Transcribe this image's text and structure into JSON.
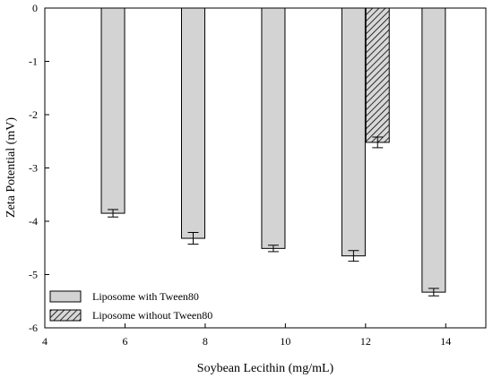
{
  "chart_data": {
    "type": "bar",
    "xlabel": "Soybean Lecithin (mg/mL)",
    "ylabel": "Zeta Potential (mV)",
    "xlim": [
      4,
      15
    ],
    "ylim": [
      -6,
      0
    ],
    "xticks": [
      "4",
      "6",
      "8",
      "10",
      "12",
      "14"
    ],
    "yticks": [
      "0",
      "-1",
      "-2",
      "-3",
      "-4",
      "-5",
      "-6"
    ],
    "grid": false,
    "legend_position": "bottom-left",
    "series": [
      {
        "name": "Liposome with Tween80",
        "color": "#d3d3d3",
        "pattern": "solid",
        "points": [
          {
            "x": 5.7,
            "value": -3.85,
            "error": 0.07
          },
          {
            "x": 7.7,
            "value": -4.32,
            "error": 0.11
          },
          {
            "x": 9.7,
            "value": -4.51,
            "error": 0.06
          },
          {
            "x": 11.7,
            "value": -4.65,
            "error": 0.1
          },
          {
            "x": 13.7,
            "value": -5.33,
            "error": 0.07
          }
        ]
      },
      {
        "name": "Liposome without Tween80",
        "color": "#d3d3d3",
        "pattern": "hatched",
        "points": [
          {
            "x": 12.3,
            "value": -2.52,
            "error": 0.1
          }
        ]
      }
    ]
  }
}
